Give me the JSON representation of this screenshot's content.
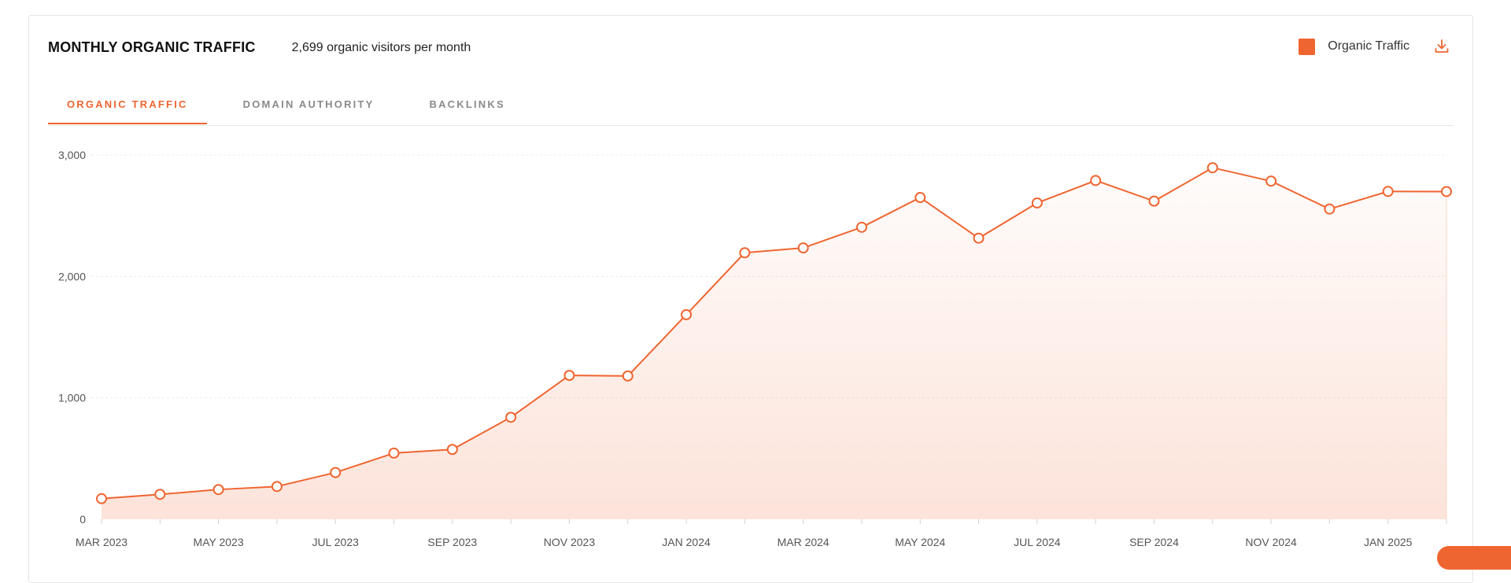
{
  "header": {
    "title": "MONTHLY ORGANIC TRAFFIC",
    "subtitle": "2,699 organic visitors per month"
  },
  "legend": {
    "label": "Organic Traffic",
    "color": "#ef6530",
    "download_icon": "download-icon"
  },
  "tabs": [
    {
      "label": "ORGANIC TRAFFIC",
      "active": true
    },
    {
      "label": "DOMAIN AUTHORITY",
      "active": false
    },
    {
      "label": "BACKLINKS",
      "active": false
    }
  ],
  "colors": {
    "accent": "#ef6530",
    "grid": "#ececec",
    "axis_text": "#555555"
  },
  "chart_data": {
    "type": "area",
    "title": "MONTHLY ORGANIC TRAFFIC",
    "xlabel": "",
    "ylabel": "",
    "ylim": [
      0,
      3000
    ],
    "yticks": [
      0,
      1000,
      2000,
      3000
    ],
    "ytick_labels": [
      "0",
      "1,000",
      "2,000",
      "3,000"
    ],
    "grid": true,
    "legend_position": "top-right",
    "x": [
      "2023-03",
      "2023-04",
      "2023-05",
      "2023-06",
      "2023-07",
      "2023-08",
      "2023-09",
      "2023-10",
      "2023-11",
      "2023-12",
      "2024-01",
      "2024-02",
      "2024-03",
      "2024-04",
      "2024-05",
      "2024-06",
      "2024-07",
      "2024-08",
      "2024-09",
      "2024-10",
      "2024-11",
      "2024-12",
      "2025-01",
      "2025-02"
    ],
    "xtick_labels": [
      "MAR 2023",
      "",
      "MAY 2023",
      "",
      "JUL 2023",
      "",
      "SEP 2023",
      "",
      "NOV 2023",
      "",
      "JAN 2024",
      "",
      "MAR 2024",
      "",
      "MAY 2024",
      "",
      "JUL 2024",
      "",
      "SEP 2024",
      "",
      "NOV 2024",
      "",
      "JAN 2025",
      ""
    ],
    "series": [
      {
        "name": "Organic Traffic",
        "values": [
          170,
          205,
          245,
          270,
          385,
          545,
          575,
          840,
          1185,
          1180,
          1685,
          2195,
          2235,
          2405,
          2650,
          2315,
          2605,
          2790,
          2620,
          2895,
          2785,
          2555,
          2700,
          2699
        ]
      }
    ]
  }
}
